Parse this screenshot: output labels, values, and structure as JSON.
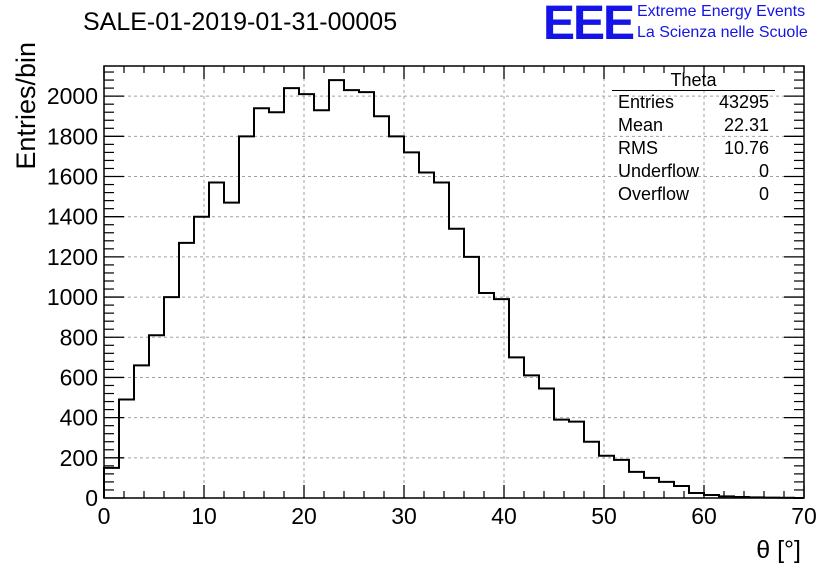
{
  "header": {
    "title": "SALE-01-2019-01-31-00005",
    "logo_text": "EEE",
    "tagline_1": "Extreme Energy Events",
    "tagline_2": "La Scienza nelle Scuole"
  },
  "stats": {
    "name": "Theta",
    "rows": [
      {
        "label": "Entries",
        "value": "43295"
      },
      {
        "label": "Mean",
        "value": "22.31"
      },
      {
        "label": "RMS",
        "value": "10.76"
      },
      {
        "label": "Underflow",
        "value": "0"
      },
      {
        "label": "Overflow",
        "value": "0"
      }
    ]
  },
  "chart_data": {
    "type": "bar",
    "subtype": "histogram-step",
    "title": "SALE-01-2019-01-31-00005",
    "xlabel": "θ [°]",
    "ylabel": "Entries/bin",
    "xlim": [
      0,
      70
    ],
    "ylim": [
      0,
      2150
    ],
    "bin_width": 1.5,
    "x_ticks": [
      0,
      10,
      20,
      30,
      40,
      50,
      60,
      70
    ],
    "y_ticks": [
      0,
      200,
      400,
      600,
      800,
      1000,
      1200,
      1400,
      1600,
      1800,
      2000
    ],
    "grid": true,
    "values": [
      150,
      490,
      660,
      810,
      1000,
      1270,
      1400,
      1570,
      1470,
      1800,
      1940,
      1920,
      2040,
      2010,
      1930,
      2080,
      2030,
      2020,
      1900,
      1800,
      1720,
      1620,
      1570,
      1340,
      1200,
      1020,
      990,
      700,
      610,
      545,
      390,
      380,
      280,
      210,
      190,
      130,
      100,
      80,
      60,
      25,
      15,
      8,
      5,
      3,
      2,
      1,
      0
    ]
  }
}
